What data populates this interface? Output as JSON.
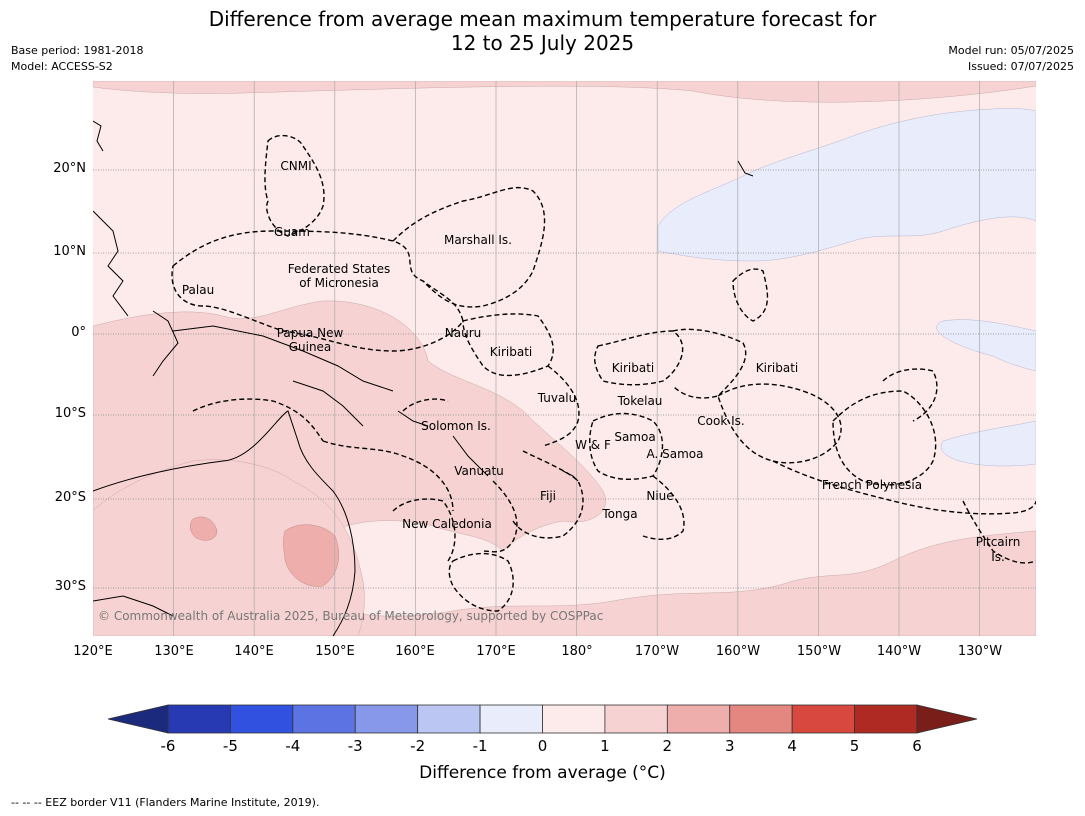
{
  "title_line1": "Difference from average mean maximum temperature forecast for",
  "title_line2": "12 to 25 July 2025",
  "meta_left": [
    "Base period: 1981-2018",
    "Model: ACCESS-S2"
  ],
  "meta_right": [
    "Model run: 05/07/2025",
    "Issued: 07/07/2025"
  ],
  "y_axis": [
    "20°N",
    "10°N",
    "0°",
    "10°S",
    "20°S",
    "30°S"
  ],
  "x_axis": [
    "120°E",
    "130°E",
    "140°E",
    "150°E",
    "160°E",
    "170°E",
    "180°",
    "170°W",
    "160°W",
    "150°W",
    "140°W",
    "130°W"
  ],
  "places": {
    "cnmi": "CNMI",
    "guam": "Guam",
    "marshall": "Marshall Is.",
    "fsm1": "Federated States",
    "fsm2": "of Micronesia",
    "palau": "Palau",
    "png1": "Papua New",
    "png2": "Guinea",
    "nauru": "Nauru",
    "kiribati_w": "Kiribati",
    "kiribati_c": "Kiribati",
    "kiribati_e": "Kiribati",
    "tuvalu": "Tuvalu",
    "tokelau": "Tokelau",
    "cook": "Cook Is.",
    "solomon": "Solomon Is.",
    "wf": "W & F",
    "samoa": "Samoa",
    "asamoa": "A. Samoa",
    "vanuatu": "Vanuatu",
    "fiji": "Fiji",
    "niue": "Niue",
    "tonga": "Tonga",
    "frenchpoly": "French Polynesia",
    "newcal": "New Caledonia",
    "pitcairn1": "Pitcairn",
    "pitcairn2": "Is."
  },
  "copyright": "© Commonwealth of Australia 2025, Bureau of Meteorology, supported by COSPPac",
  "colorbar": {
    "ticks": [
      "-6",
      "-5",
      "-4",
      "-3",
      "-2",
      "-1",
      "0",
      "1",
      "2",
      "3",
      "4",
      "5",
      "6"
    ],
    "colors": [
      "#283ab3",
      "#3152e0",
      "#5c73e4",
      "#8797ea",
      "#bcc6f2",
      "#e9ecfb",
      "#fcebea",
      "#f6d3d2",
      "#eeaeab",
      "#e58781",
      "#d9483f",
      "#ae2a22"
    ],
    "low_extend_color": "#1c2a7d",
    "high_extend_color": "#7a1e19",
    "label": "Difference from average (°C)"
  },
  "legend_colors": {
    "band_0_1": "#fcebea",
    "band_1_2": "#f6d3d2",
    "band_2_3": "#eeaeab",
    "band_m1_0": "#e9ecfb"
  },
  "footnote": "--  --  -- EEZ border V11 (Flanders Marine Institute, 2019)."
}
